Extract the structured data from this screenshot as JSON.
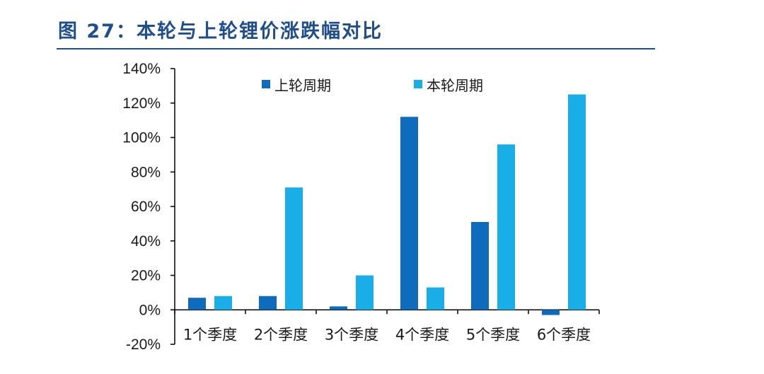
{
  "figure": {
    "title": "图 27：本轮与上轮锂价涨跌幅对比"
  },
  "chart_data": {
    "type": "bar",
    "title": "",
    "xlabel": "",
    "ylabel": "",
    "categories": [
      "1个季度",
      "2个季度",
      "3个季度",
      "4个季度",
      "5个季度",
      "6个季度"
    ],
    "series": [
      {
        "name": "上轮周期",
        "color": "#0f6cbd",
        "values": [
          7,
          8,
          2,
          112,
          51,
          -3
        ]
      },
      {
        "name": "本轮周期",
        "color": "#19aee8",
        "values": [
          8,
          71,
          20,
          13,
          96,
          125
        ]
      }
    ],
    "ylim": [
      -20,
      140
    ],
    "yticks": [
      -20,
      0,
      20,
      40,
      60,
      80,
      100,
      120,
      140
    ],
    "ytick_labels": [
      "-20%",
      "0%",
      "20%",
      "40%",
      "60%",
      "80%",
      "100%",
      "120%",
      "140%"
    ],
    "grid": false,
    "legend_position": "top-center"
  }
}
